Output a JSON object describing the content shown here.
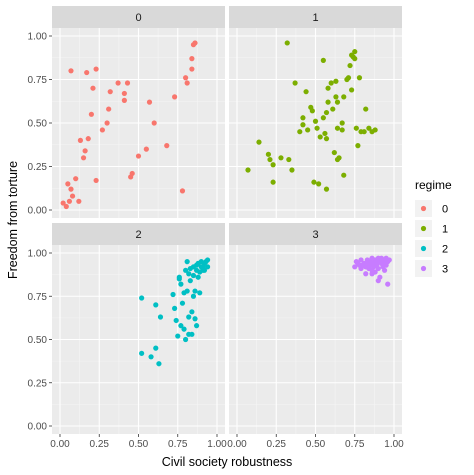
{
  "chart_data": {
    "type": "scatter",
    "facet_variable": "regime",
    "xlabel": "Civil society robustness",
    "ylabel": "Freedom from torture",
    "xlim": [
      0,
      1
    ],
    "ylim": [
      0,
      1
    ],
    "x_ticks": [
      "0.00",
      "0.25",
      "0.50",
      "0.75",
      "1.00"
    ],
    "y_ticks": [
      "0.00",
      "0.25",
      "0.50",
      "0.75",
      "1.00"
    ],
    "grid": true,
    "legend": {
      "title": "regime",
      "placement": "right",
      "entries": [
        "0",
        "1",
        "2",
        "3"
      ]
    },
    "colors": {
      "0": "#F8766D",
      "1": "#7CAE00",
      "2": "#00BFC4",
      "3": "#C77CFF",
      "panel_bg": "#EBEBEB",
      "strip_bg": "#D9D9D9",
      "grid_major": "#FFFFFF"
    },
    "panels": [
      {
        "label": "0",
        "points": [
          [
            0.02,
            0.04
          ],
          [
            0.04,
            0.02
          ],
          [
            0.06,
            0.05
          ],
          [
            0.05,
            0.15
          ],
          [
            0.07,
            0.12
          ],
          [
            0.08,
            0.08
          ],
          [
            0.1,
            0.18
          ],
          [
            0.12,
            0.05
          ],
          [
            0.13,
            0.4
          ],
          [
            0.15,
            0.3
          ],
          [
            0.16,
            0.34
          ],
          [
            0.18,
            0.41
          ],
          [
            0.2,
            0.55
          ],
          [
            0.23,
            0.17
          ],
          [
            0.27,
            0.46
          ],
          [
            0.3,
            0.5
          ],
          [
            0.31,
            0.58
          ],
          [
            0.32,
            0.68
          ],
          [
            0.37,
            0.73
          ],
          [
            0.41,
            0.67
          ],
          [
            0.41,
            0.63
          ],
          [
            0.43,
            0.73
          ],
          [
            0.45,
            0.19
          ],
          [
            0.46,
            0.21
          ],
          [
            0.5,
            0.31
          ],
          [
            0.55,
            0.35
          ],
          [
            0.57,
            0.62
          ],
          [
            0.6,
            0.5
          ],
          [
            0.68,
            0.37
          ],
          [
            0.73,
            0.65
          ],
          [
            0.78,
            0.11
          ],
          [
            0.8,
            0.76
          ],
          [
            0.81,
            0.73
          ],
          [
            0.84,
            0.81
          ],
          [
            0.84,
            0.87
          ],
          [
            0.85,
            0.95
          ],
          [
            0.86,
            0.96
          ],
          [
            0.07,
            0.8
          ],
          [
            0.17,
            0.79
          ],
          [
            0.23,
            0.81
          ],
          [
            0.21,
            0.7
          ]
        ]
      },
      {
        "label": "1",
        "points": [
          [
            0.07,
            0.23
          ],
          [
            0.14,
            0.39
          ],
          [
            0.2,
            0.32
          ],
          [
            0.21,
            0.29
          ],
          [
            0.23,
            0.26
          ],
          [
            0.23,
            0.16
          ],
          [
            0.28,
            0.3
          ],
          [
            0.32,
            0.96
          ],
          [
            0.33,
            0.29
          ],
          [
            0.35,
            0.23
          ],
          [
            0.37,
            0.73
          ],
          [
            0.4,
            0.45
          ],
          [
            0.42,
            0.53
          ],
          [
            0.42,
            0.49
          ],
          [
            0.44,
            0.68
          ],
          [
            0.45,
            0.46
          ],
          [
            0.47,
            0.59
          ],
          [
            0.48,
            0.57
          ],
          [
            0.49,
            0.16
          ],
          [
            0.5,
            0.51
          ],
          [
            0.51,
            0.47
          ],
          [
            0.52,
            0.15
          ],
          [
            0.53,
            0.42
          ],
          [
            0.55,
            0.86
          ],
          [
            0.55,
            0.53
          ],
          [
            0.56,
            0.44
          ],
          [
            0.57,
            0.41
          ],
          [
            0.57,
            0.56
          ],
          [
            0.57,
            0.12
          ],
          [
            0.58,
            0.7
          ],
          [
            0.6,
            0.73
          ],
          [
            0.61,
            0.58
          ],
          [
            0.62,
            0.33
          ],
          [
            0.63,
            0.74
          ],
          [
            0.64,
            0.62
          ],
          [
            0.64,
            0.47
          ],
          [
            0.64,
            0.29
          ],
          [
            0.65,
            0.3
          ],
          [
            0.67,
            0.5
          ],
          [
            0.67,
            0.46
          ],
          [
            0.68,
            0.65
          ],
          [
            0.68,
            0.2
          ],
          [
            0.7,
            0.75
          ],
          [
            0.71,
            0.76
          ],
          [
            0.72,
            0.83
          ],
          [
            0.73,
            0.89
          ],
          [
            0.73,
            0.69
          ],
          [
            0.74,
            0.88
          ],
          [
            0.75,
            0.91
          ],
          [
            0.75,
            0.87
          ],
          [
            0.76,
            0.47
          ],
          [
            0.77,
            0.37
          ],
          [
            0.78,
            0.76
          ],
          [
            0.79,
            0.45
          ],
          [
            0.81,
            0.45
          ],
          [
            0.82,
            0.58
          ],
          [
            0.84,
            0.47
          ],
          [
            0.86,
            0.45
          ],
          [
            0.88,
            0.46
          ],
          [
            0.63,
            0.65
          ],
          [
            0.58,
            0.62
          ]
        ]
      },
      {
        "label": "2",
        "points": [
          [
            0.52,
            0.74
          ],
          [
            0.52,
            0.42
          ],
          [
            0.58,
            0.4
          ],
          [
            0.61,
            0.45
          ],
          [
            0.61,
            0.7
          ],
          [
            0.63,
            0.36
          ],
          [
            0.64,
            0.63
          ],
          [
            0.72,
            0.76
          ],
          [
            0.73,
            0.68
          ],
          [
            0.76,
            0.86
          ],
          [
            0.77,
            0.58
          ],
          [
            0.77,
            0.82
          ],
          [
            0.78,
            0.71
          ],
          [
            0.79,
            0.77
          ],
          [
            0.79,
            0.56
          ],
          [
            0.8,
            0.5
          ],
          [
            0.8,
            0.9
          ],
          [
            0.81,
            0.78
          ],
          [
            0.82,
            0.63
          ],
          [
            0.82,
            0.53
          ],
          [
            0.82,
            0.88
          ],
          [
            0.83,
            0.91
          ],
          [
            0.83,
            0.84
          ],
          [
            0.84,
            0.66
          ],
          [
            0.84,
            0.53
          ],
          [
            0.85,
            0.75
          ],
          [
            0.85,
            0.92
          ],
          [
            0.85,
            0.87
          ],
          [
            0.86,
            0.62
          ],
          [
            0.86,
            0.78
          ],
          [
            0.87,
            0.58
          ],
          [
            0.87,
            0.93
          ],
          [
            0.87,
            0.9
          ],
          [
            0.88,
            0.86
          ],
          [
            0.88,
            0.94
          ],
          [
            0.89,
            0.89
          ],
          [
            0.89,
            0.77
          ],
          [
            0.9,
            0.92
          ],
          [
            0.9,
            0.95
          ],
          [
            0.91,
            0.9
          ],
          [
            0.91,
            0.92
          ],
          [
            0.92,
            0.94
          ],
          [
            0.92,
            0.9
          ],
          [
            0.93,
            0.95
          ],
          [
            0.94,
            0.92
          ],
          [
            0.94,
            0.96
          ],
          [
            0.76,
            0.85
          ],
          [
            0.75,
            0.52
          ],
          [
            0.74,
            0.61
          ],
          [
            0.81,
            0.95
          ]
        ]
      },
      {
        "label": "3",
        "points": [
          [
            0.75,
            0.92
          ],
          [
            0.76,
            0.95
          ],
          [
            0.77,
            0.94
          ],
          [
            0.78,
            0.93
          ],
          [
            0.79,
            0.96
          ],
          [
            0.8,
            0.93
          ],
          [
            0.81,
            0.94
          ],
          [
            0.82,
            0.92
          ],
          [
            0.82,
            0.88
          ],
          [
            0.83,
            0.96
          ],
          [
            0.84,
            0.94
          ],
          [
            0.84,
            0.91
          ],
          [
            0.85,
            0.95
          ],
          [
            0.85,
            0.93
          ],
          [
            0.86,
            0.97
          ],
          [
            0.86,
            0.9
          ],
          [
            0.87,
            0.94
          ],
          [
            0.87,
            0.92
          ],
          [
            0.88,
            0.96
          ],
          [
            0.88,
            0.89
          ],
          [
            0.89,
            0.95
          ],
          [
            0.89,
            0.93
          ],
          [
            0.9,
            0.97
          ],
          [
            0.9,
            0.91
          ],
          [
            0.91,
            0.95
          ],
          [
            0.91,
            0.86
          ],
          [
            0.92,
            0.94
          ],
          [
            0.92,
            0.97
          ],
          [
            0.93,
            0.92
          ],
          [
            0.93,
            0.96
          ],
          [
            0.94,
            0.94
          ],
          [
            0.94,
            0.9
          ],
          [
            0.95,
            0.97
          ],
          [
            0.95,
            0.93
          ],
          [
            0.96,
            0.95
          ],
          [
            0.96,
            0.82
          ],
          [
            0.9,
            0.84
          ],
          [
            0.86,
            0.88
          ],
          [
            0.79,
            0.91
          ],
          [
            0.97,
            0.96
          ]
        ]
      }
    ]
  }
}
